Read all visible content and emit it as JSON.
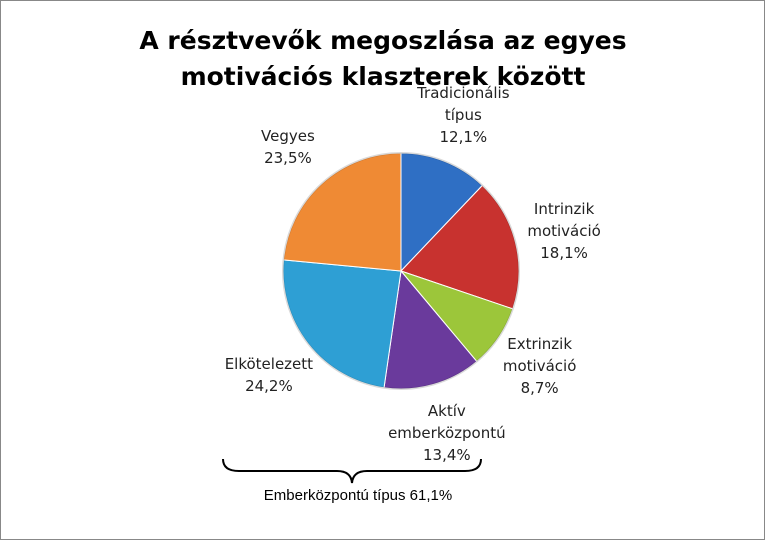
{
  "chart_data": {
    "type": "pie",
    "title": "A résztvevők megoszlása az egyes motivációs klaszterek között",
    "categories": [
      "Tradicionális típus",
      "Intrinzik motiváció",
      "Extrinzik motiváció",
      "Aktív emberközpontú",
      "Elkötelezett",
      "Vegyes"
    ],
    "values": [
      12.1,
      18.1,
      8.7,
      13.4,
      24.2,
      23.5
    ],
    "value_labels": [
      "12,1%",
      "18,1%",
      "8,7%",
      "13,4%",
      "24,2%",
      "23,5%"
    ],
    "colors": [
      "#2f6fc4",
      "#c8322f",
      "#9cc63a",
      "#6a3a9c",
      "#2e9fd4",
      "#ef8a34"
    ],
    "annotation": "Emberközpontú típus 61,1%"
  }
}
